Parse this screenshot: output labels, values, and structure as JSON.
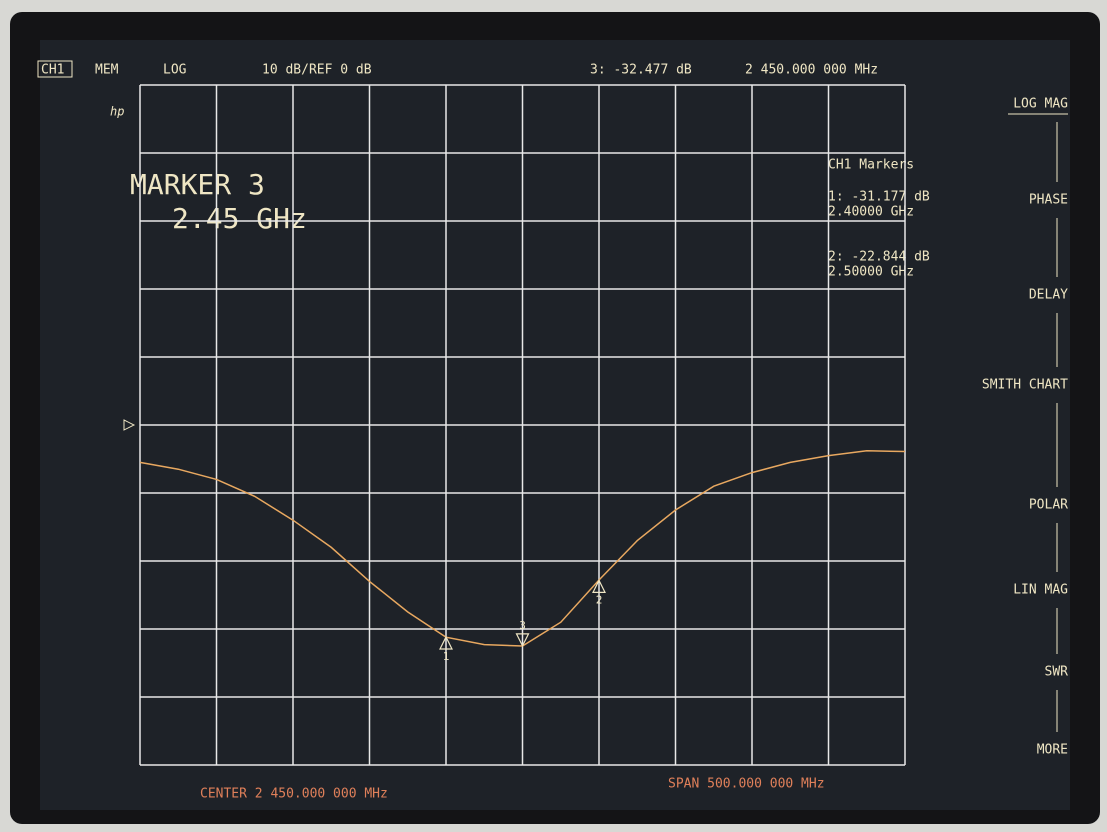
{
  "header": {
    "channel": "CH1",
    "mem": "MEM",
    "format": "LOG",
    "scale": "10 dB/REF 0 dB",
    "marker_readout": "3: -32.477 dB",
    "marker_freq": "2 450.000 000 MHz",
    "logo": "hp"
  },
  "marker_box": {
    "line1": "MARKER 3",
    "line2": "2.45 GHz"
  },
  "marker_list": {
    "title": "CH1 Markers",
    "entries": [
      [
        "1: -31.177 dB",
        "2.40000 GHz"
      ],
      [
        "2: -22.844 dB",
        "2.50000 GHz"
      ]
    ]
  },
  "softkeys": [
    "LOG MAG",
    "PHASE",
    "DELAY",
    "SMITH CHART",
    "POLAR",
    "LIN MAG",
    "SWR",
    "MORE"
  ],
  "footer": {
    "center": "CENTER 2 450.000 000 MHz",
    "span": "SPAN 500.000 000 MHz"
  },
  "chart_data": {
    "type": "line",
    "color": "#e8a860",
    "x": [
      2200,
      2225,
      2250,
      2275,
      2300,
      2325,
      2350,
      2375,
      2400,
      2425,
      2450,
      2475,
      2500,
      2525,
      2550,
      2575,
      2600,
      2625,
      2650,
      2675,
      2700
    ],
    "values": [
      -5.5,
      -6.5,
      -8,
      -10.5,
      -14,
      -18,
      -23,
      -27.5,
      -31.2,
      -32.3,
      -32.5,
      -29,
      -22.8,
      -17,
      -12.5,
      -9,
      -7,
      -5.5,
      -4.5,
      -3.8,
      -3.9
    ],
    "xlim": [
      2200,
      2700
    ],
    "ylim": [
      -50,
      50
    ],
    "reference": 0,
    "markers": [
      {
        "label": "1",
        "x": 2400,
        "value": -31.177
      },
      {
        "label": "2",
        "x": 2500,
        "value": -22.844
      },
      {
        "label": "3",
        "x": 2450,
        "value": -32.477
      }
    ]
  }
}
